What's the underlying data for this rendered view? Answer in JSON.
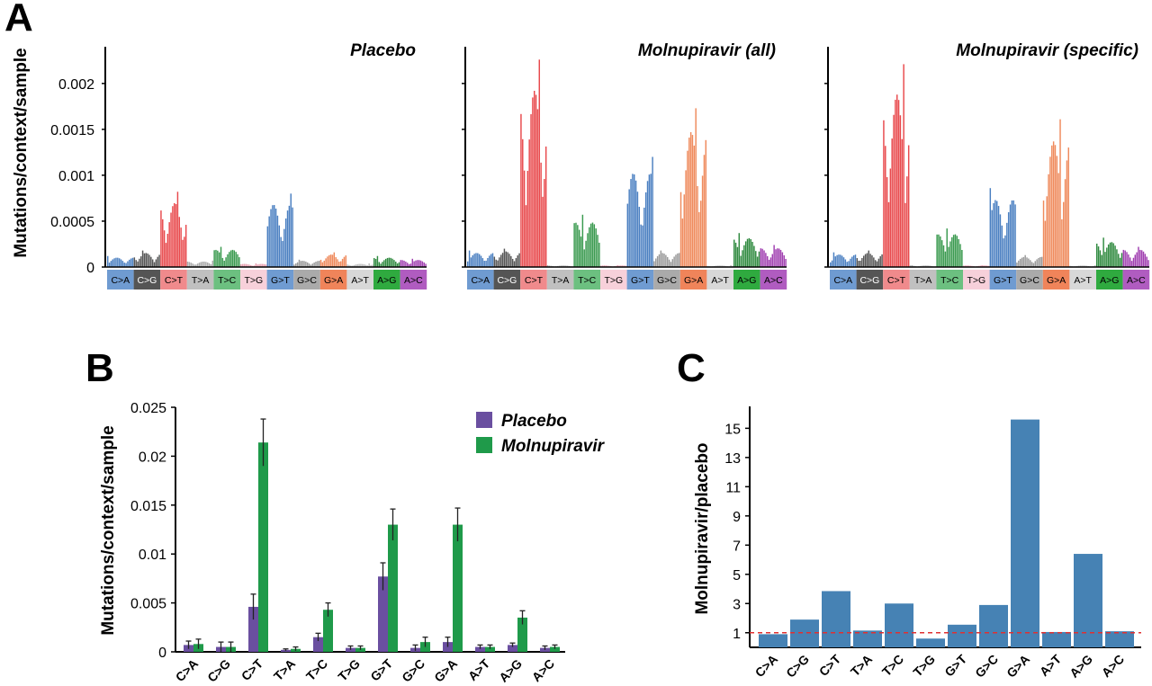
{
  "panel_letters": {
    "a": "A",
    "b": "B",
    "c": "C"
  },
  "chart_data": [
    {
      "id": "A",
      "type": "bar",
      "ylabel": "Mutations/context/sample",
      "ylim": [
        0,
        0.0024
      ],
      "yticks": [
        0,
        0.0005,
        0.001,
        0.0015,
        0.002
      ],
      "ytick_labels": [
        "0",
        "0.0005",
        "0.001",
        "0.0015",
        "0.002"
      ],
      "categories": [
        "C>A",
        "C>G",
        "C>T",
        "T>A",
        "T>C",
        "T>G",
        "G>T",
        "G>C",
        "G>A",
        "A>T",
        "A>G",
        "A>C"
      ],
      "category_colors": [
        "#4a7fc1",
        "#555555",
        "#e8494c",
        "#aaaaaa",
        "#3a9a4f",
        "#e8a0b0",
        "#4a7fc1",
        "#999999",
        "#ef8a5c",
        "#bbbbbb",
        "#2f8a3f",
        "#a03fb0"
      ],
      "label_bg": [
        "#6f9bd1",
        "#555555",
        "#f08a8c",
        "#c0c0c0",
        "#6cc080",
        "#f7d0da",
        "#6f9bd1",
        "#aaaaaa",
        "#f0845a",
        "#d8d8d8",
        "#2faa3f",
        "#b05cc0"
      ],
      "label_fg": [
        "#000",
        "#fff",
        "#000",
        "#000",
        "#000",
        "#000",
        "#000",
        "#000",
        "#000",
        "#000",
        "#000",
        "#000"
      ],
      "subplots": [
        {
          "title": "Placebo",
          "max_per_group": [
            0.00012,
            0.00018,
            0.00082,
            7e-05,
            0.00022,
            4e-05,
            0.0008,
            8e-05,
            0.00016,
            4e-05,
            0.00012,
            9e-05
          ]
        },
        {
          "title": "Molnupiravir (all)",
          "max_per_group": [
            0.00018,
            0.0002,
            0.00226,
            2e-05,
            0.00057,
            2e-05,
            0.0012,
            0.00018,
            0.00173,
            2e-05,
            0.00037,
            0.00024
          ]
        },
        {
          "title": "Molnupiravir (specific)",
          "max_per_group": [
            0.00016,
            0.00018,
            0.00221,
            2e-05,
            0.00042,
            2e-05,
            0.00086,
            0.00013,
            0.00161,
            2e-05,
            0.00032,
            0.00022
          ]
        }
      ]
    },
    {
      "id": "B",
      "type": "bar",
      "ylabel": "Mutations/context/sample",
      "ylim": [
        0,
        0.025
      ],
      "yticks": [
        0,
        0.005,
        0.01,
        0.015,
        0.02,
        0.025
      ],
      "ytick_labels": [
        "0",
        "0.005",
        "0.01",
        "0.015",
        "0.02",
        "0.025"
      ],
      "categories": [
        "C>A",
        "C>G",
        "C>T",
        "T>A",
        "T>C",
        "T>G",
        "G>T",
        "G>C",
        "G>A",
        "A>T",
        "A>G",
        "A>C"
      ],
      "legend_position": "top-right",
      "series": [
        {
          "name": "Placebo",
          "color": "#6a4fa0",
          "values": [
            0.0007,
            0.0005,
            0.0046,
            0.0002,
            0.0015,
            0.0004,
            0.0077,
            0.0004,
            0.001,
            0.0005,
            0.0007,
            0.0004
          ],
          "err": [
            0.0004,
            0.0005,
            0.0013,
            0.0001,
            0.0004,
            0.0002,
            0.0014,
            0.0003,
            0.0005,
            0.0002,
            0.0002,
            0.0002
          ]
        },
        {
          "name": "Molnupiravir",
          "color": "#1f9a4a",
          "values": [
            0.0008,
            0.0005,
            0.0214,
            0.0003,
            0.0043,
            0.0004,
            0.013,
            0.001,
            0.013,
            0.0005,
            0.0035,
            0.0005
          ],
          "err": [
            0.0005,
            0.0005,
            0.0024,
            0.0002,
            0.0007,
            0.0002,
            0.0016,
            0.0005,
            0.0017,
            0.0002,
            0.0007,
            0.0002
          ]
        }
      ]
    },
    {
      "id": "C",
      "type": "bar",
      "ylabel": "Molnupiravir/placebo",
      "ylim": [
        0,
        16.5
      ],
      "yticks": [
        1,
        3,
        5,
        7,
        9,
        11,
        13,
        15
      ],
      "ytick_labels": [
        "1",
        "3",
        "5",
        "7",
        "9",
        "11",
        "13",
        "15"
      ],
      "categories": [
        "C>A",
        "C>G",
        "C>T",
        "T>A",
        "T>C",
        "T>G",
        "G>T",
        "G>C",
        "G>A",
        "A>T",
        "A>G",
        "A>C"
      ],
      "values": [
        0.9,
        1.9,
        3.85,
        1.15,
        3.0,
        0.6,
        1.55,
        2.9,
        15.6,
        1.05,
        6.4,
        1.1
      ],
      "bar_color": "#4682b4",
      "reference_line": {
        "y": 1,
        "color": "#e03030",
        "style": "dashed"
      }
    }
  ]
}
